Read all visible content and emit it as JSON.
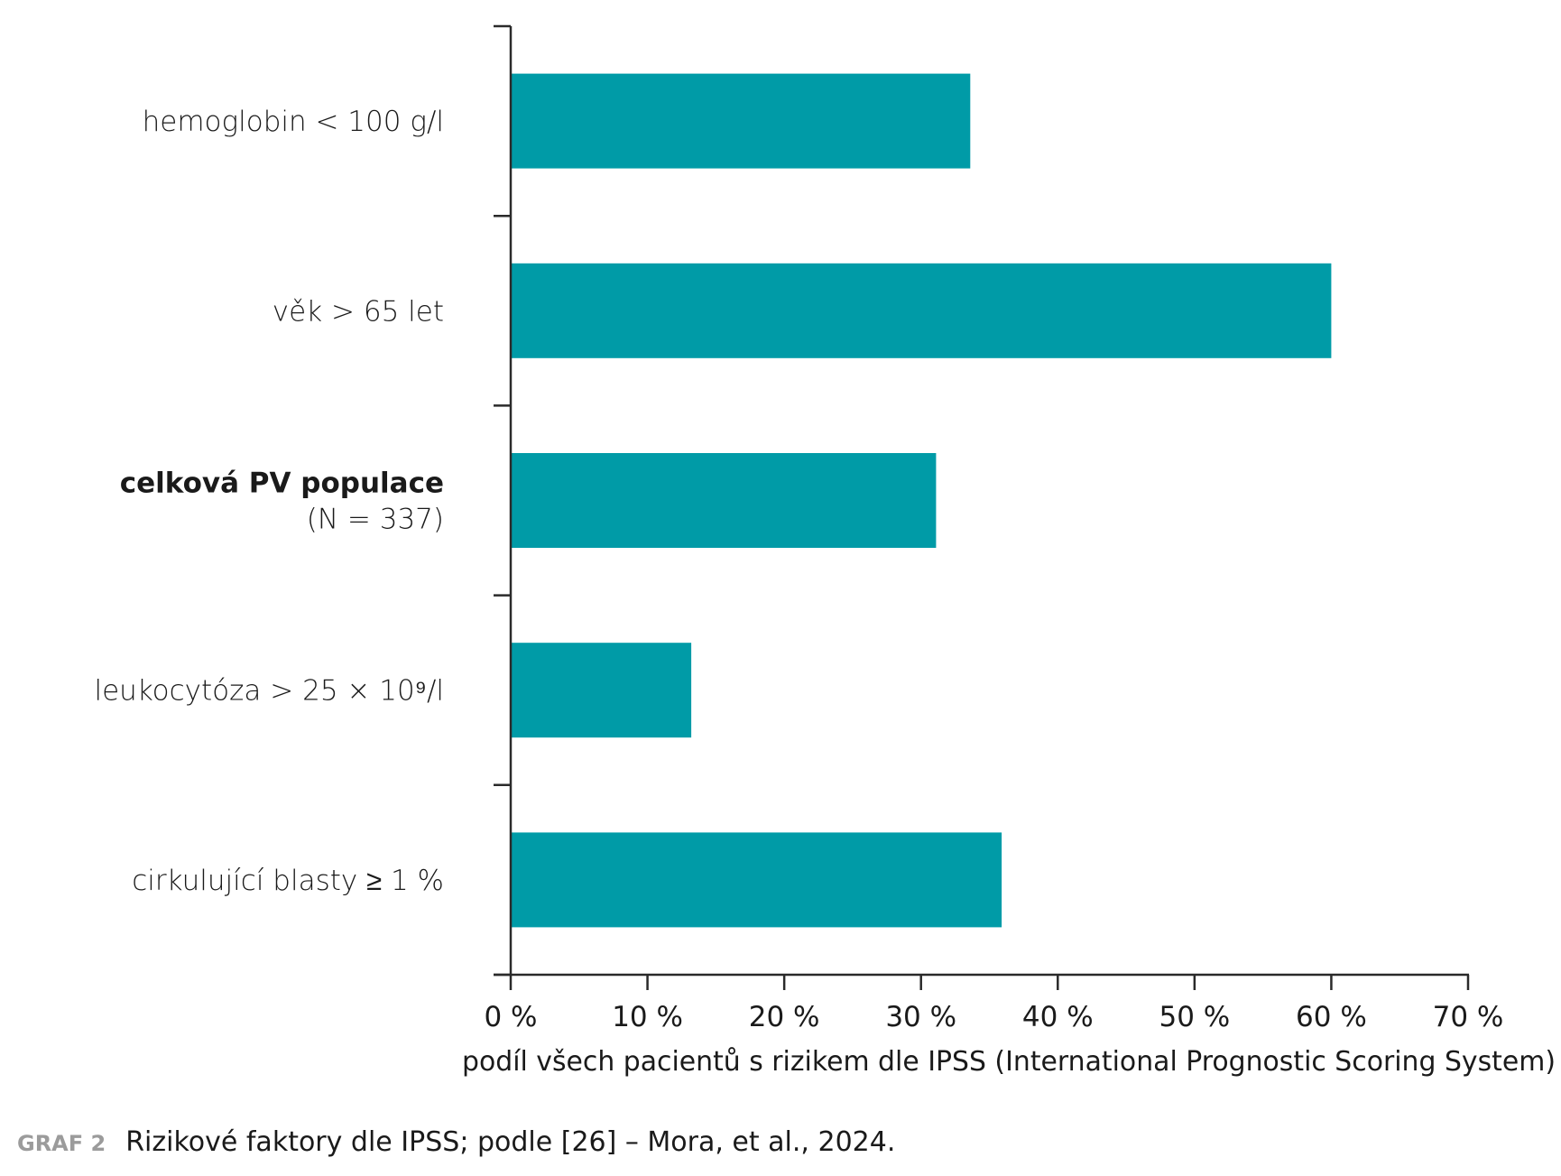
{
  "colors": {
    "bar": "#009ba7",
    "axis": "#2a2a2a",
    "text": "#1a1a1a",
    "caption_tag": "#9b9b9b"
  },
  "chart_data": {
    "type": "bar",
    "orientation": "horizontal",
    "categories": [
      [
        "hemoglobin < 100 g/l"
      ],
      [
        "věk > 65 let"
      ],
      [
        "celková PV populace",
        "(N = 337)"
      ],
      [
        "leukocytóza > 25 × 10⁹/l"
      ],
      [
        "cirkulující blasty ≥ 1 %"
      ]
    ],
    "bold_category_index": 2,
    "values": [
      33.6,
      60,
      31.1,
      13.2,
      35.9
    ],
    "xlim": [
      0,
      70
    ],
    "xticks": [
      0,
      10,
      20,
      30,
      40,
      50,
      60,
      70
    ],
    "xtick_labels": [
      "0 %",
      "10 %",
      "20 %",
      "30 %",
      "40 %",
      "50 %",
      "60 %",
      "70 %"
    ],
    "xlabel": "podíl všech pacientů s rizikem dle IPSS (International Prognostic Scoring System)",
    "ylabel": "",
    "grid": false,
    "legend": "none"
  },
  "caption": {
    "tag": "GRAF 2",
    "text": "Rizikové faktory dle IPSS; podle [26] – Mora, et al., 2024."
  }
}
